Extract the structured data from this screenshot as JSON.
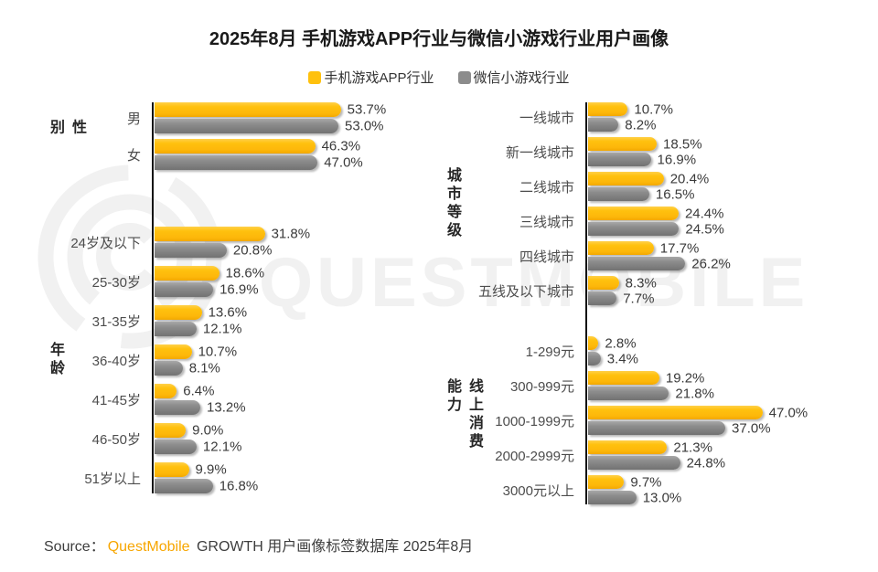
{
  "title": "2025年8月 手机游戏APP行业与微信小游戏行业用户画像",
  "legend": [
    {
      "label": "手机游戏APP行业",
      "color": "#ffc10e"
    },
    {
      "label": "微信小游戏行业",
      "color": "#8c8c8c"
    }
  ],
  "colors": {
    "app": "#ffc10e",
    "mini": "#8c8c8c",
    "axis": "#141414",
    "brand_orange": "#f7a600",
    "watermark": "#f1f1f1"
  },
  "watermark": "QUESTMOBILE",
  "source": {
    "prefix": "Source：",
    "brand": "QuestMobile",
    "suffix": "GROWTH 用户画像标签数据库 2025年8月"
  },
  "chart_data": {
    "type": "bar",
    "orientation": "horizontal",
    "unit": "%",
    "series_names": [
      "手机游戏APP行业",
      "微信小游戏行业"
    ],
    "legend_position": "top-center",
    "grid": false,
    "panels": [
      {
        "id": "gender",
        "group": "性别",
        "side": "left",
        "scale_max": 77,
        "rows": [
          {
            "label": "男",
            "values": [
              53.7,
              53.0
            ]
          },
          {
            "label": "女",
            "values": [
              46.3,
              47.0
            ]
          }
        ]
      },
      {
        "id": "age",
        "group": "年龄",
        "side": "left",
        "scale_max": 77,
        "rows": [
          {
            "label": "24岁及以下",
            "values": [
              31.8,
              20.8
            ]
          },
          {
            "label": "25-30岁",
            "values": [
              18.6,
              16.9
            ]
          },
          {
            "label": "31-35岁",
            "values": [
              13.6,
              12.1
            ]
          },
          {
            "label": "36-40岁",
            "values": [
              10.7,
              8.1
            ]
          },
          {
            "label": "41-45岁",
            "values": [
              6.4,
              13.2
            ]
          },
          {
            "label": "46-50岁",
            "values": [
              9.0,
              12.1
            ]
          },
          {
            "label": "51岁以上",
            "values": [
              9.9,
              16.8
            ]
          }
        ]
      },
      {
        "id": "city",
        "group": "城市等级",
        "side": "right",
        "scale_max": 72,
        "rows": [
          {
            "label": "一线城市",
            "values": [
              10.7,
              8.2
            ]
          },
          {
            "label": "新一线城市",
            "values": [
              18.5,
              16.9
            ]
          },
          {
            "label": "二线城市",
            "values": [
              20.4,
              16.5
            ]
          },
          {
            "label": "三线城市",
            "values": [
              24.4,
              24.5
            ]
          },
          {
            "label": "四线城市",
            "values": [
              17.7,
              26.2
            ]
          },
          {
            "label": "五线及以下城市",
            "values": [
              8.3,
              7.7
            ]
          }
        ]
      },
      {
        "id": "spend",
        "group": "线上消费能力",
        "side": "right",
        "scale_max": 72,
        "rows": [
          {
            "label": "1-299元",
            "values": [
              2.8,
              3.4
            ]
          },
          {
            "label": "300-999元",
            "values": [
              19.2,
              21.8
            ]
          },
          {
            "label": "1000-1999元",
            "values": [
              47.0,
              37.0
            ]
          },
          {
            "label": "2000-2999元",
            "values": [
              21.3,
              24.8
            ]
          },
          {
            "label": "3000元以上",
            "values": [
              9.7,
              13.0
            ]
          }
        ]
      }
    ]
  }
}
